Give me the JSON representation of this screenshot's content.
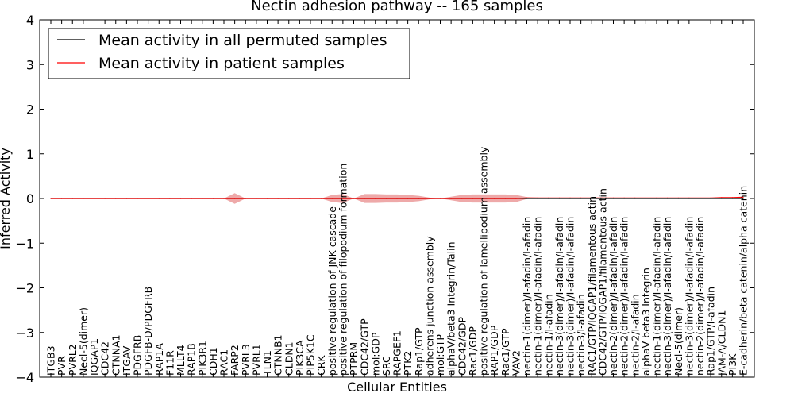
{
  "chart_data": {
    "type": "line",
    "title": "Nectin adhesion pathway -- 165 samples",
    "xlabel": "Cellular Entities",
    "ylabel": "Inferred Activity",
    "ylim": [
      -4,
      4
    ],
    "yticks": [
      4,
      3,
      2,
      1,
      0,
      -1,
      -2,
      -3,
      -4
    ],
    "ytick_labels": [
      "4",
      "3",
      "2",
      "1",
      "0",
      "−1",
      "−2",
      "−3",
      "−4"
    ],
    "grid": false,
    "legend_position": "top-left",
    "colors": {
      "permuted": "#000000",
      "patient": "#ff0000",
      "band": "#e36f6f"
    },
    "categories": [
      "ITGB3",
      "PVR",
      "PVRL2",
      "Necl-5(dimer)",
      "IQGAP1",
      "CDC42",
      "CTNNA1",
      "ITGAV",
      "PDGFRB",
      "PDGFB-D/PDGFRB",
      "RAP1A",
      "F11R",
      "MLLT4",
      "RAP1B",
      "PIK3R1",
      "CDH1",
      "RAC1",
      "FARP2",
      "PVRL3",
      "PVRL1",
      "TLN1",
      "CTNNB1",
      "CLDN1",
      "PIK3CA",
      "PIP5K1C",
      "CRK",
      "positive regulation of JNK cascade",
      "positive regulation of filopodium formation",
      "PTPRM",
      "CDC42/GTP",
      "mol:GDP",
      "SRC",
      "RAPGEF1",
      "PTK2",
      "Rap1/GTP",
      "adherens junction assembly",
      "mol:GTP",
      "alphaV/beta3 Integrin/Talin",
      "CDC42/GDP",
      "Rac1/GDP",
      "positive regulation of lamellipodium assembly",
      "RAP1/GDP",
      "Rac1/GTP",
      "VAV2",
      "nectin-1(dimer)/I-afadin/I-afadin",
      "nectin-1(dimer)/I-afadin/I-afadin",
      "nectin-1/I-afadin",
      "nectin-3(dimer)/I-afadin/I-afadin",
      "nectin-3(dimer)/I-afadin/I-afadin",
      "nectin-3/I-afadin",
      "RAC1/GTP/IQGAP1/filamentous actin",
      "CDC42/GTP/IQGAP1/filamentous actin",
      "nectin-2(dimer)/I-afadin/I-afadin",
      "nectin-2(dimer)/I-afadin/I-afadin",
      "nectin-2/I-afadin",
      "alphaV beta3 Integrin",
      "nectin-1(dimer)/I-afadin/I-afadin",
      "nectin-3(dimer)/I-afadin/I-afadin",
      "Necl-5(dimer)",
      "nectin-3(dimer)/I-afadin/I-afadin",
      "nectin-2(dimer)/I-afadin/I-afadin",
      "Rap1/GTP/I-afadin",
      "JAM-A/CLDN1",
      "PI3K",
      "E-cadherin/beta catenin/alpha catenin"
    ],
    "series": [
      {
        "name": "Mean activity in all permuted samples",
        "values": [
          0,
          0,
          0,
          0,
          0,
          0,
          0,
          0,
          0,
          0,
          0,
          0,
          0,
          0,
          0,
          0,
          0,
          0,
          0,
          0,
          0,
          0,
          0,
          0,
          0,
          0,
          0,
          0,
          0,
          0,
          0,
          0,
          0,
          0,
          0,
          0,
          0,
          0,
          0,
          0,
          0,
          0,
          0,
          0,
          0,
          0,
          0,
          0,
          0,
          0,
          0,
          0,
          0,
          0,
          0,
          0,
          0,
          0,
          0,
          0,
          0,
          0,
          0,
          0,
          0
        ]
      },
      {
        "name": "Mean activity in patient samples",
        "values": [
          0,
          0,
          0,
          0,
          0,
          0,
          0,
          0,
          0,
          0,
          0,
          0,
          0,
          0,
          0,
          0,
          0,
          0,
          0,
          0,
          0,
          0,
          0,
          0,
          0,
          0,
          0,
          0,
          0,
          0,
          0,
          0,
          0,
          0,
          0,
          0,
          0,
          0,
          0,
          0,
          0,
          0,
          0,
          0,
          0.01,
          0.01,
          0.01,
          0.01,
          0.01,
          0.01,
          0.01,
          0.01,
          0.01,
          0.01,
          0.01,
          0.01,
          0.01,
          0.01,
          0.01,
          0.01,
          0.01,
          0.01,
          0.02,
          0.02,
          0.03
        ]
      }
    ],
    "band_halfwidth": [
      0,
      0,
      0,
      0,
      0,
      0,
      0,
      0,
      0,
      0,
      0,
      0,
      0,
      0,
      0,
      0,
      0,
      0.12,
      0,
      0,
      0,
      0,
      0,
      0,
      0,
      0,
      0.08,
      0.1,
      0,
      0.1,
      0.1,
      0.09,
      0.09,
      0.08,
      0.06,
      0.02,
      0,
      0.04,
      0.08,
      0.09,
      0.09,
      0.09,
      0.09,
      0.08,
      0.02,
      0.01,
      0,
      0,
      0,
      0,
      0,
      0,
      0,
      0,
      0,
      0,
      0,
      0,
      0,
      0,
      0,
      0,
      0,
      0,
      0
    ]
  }
}
